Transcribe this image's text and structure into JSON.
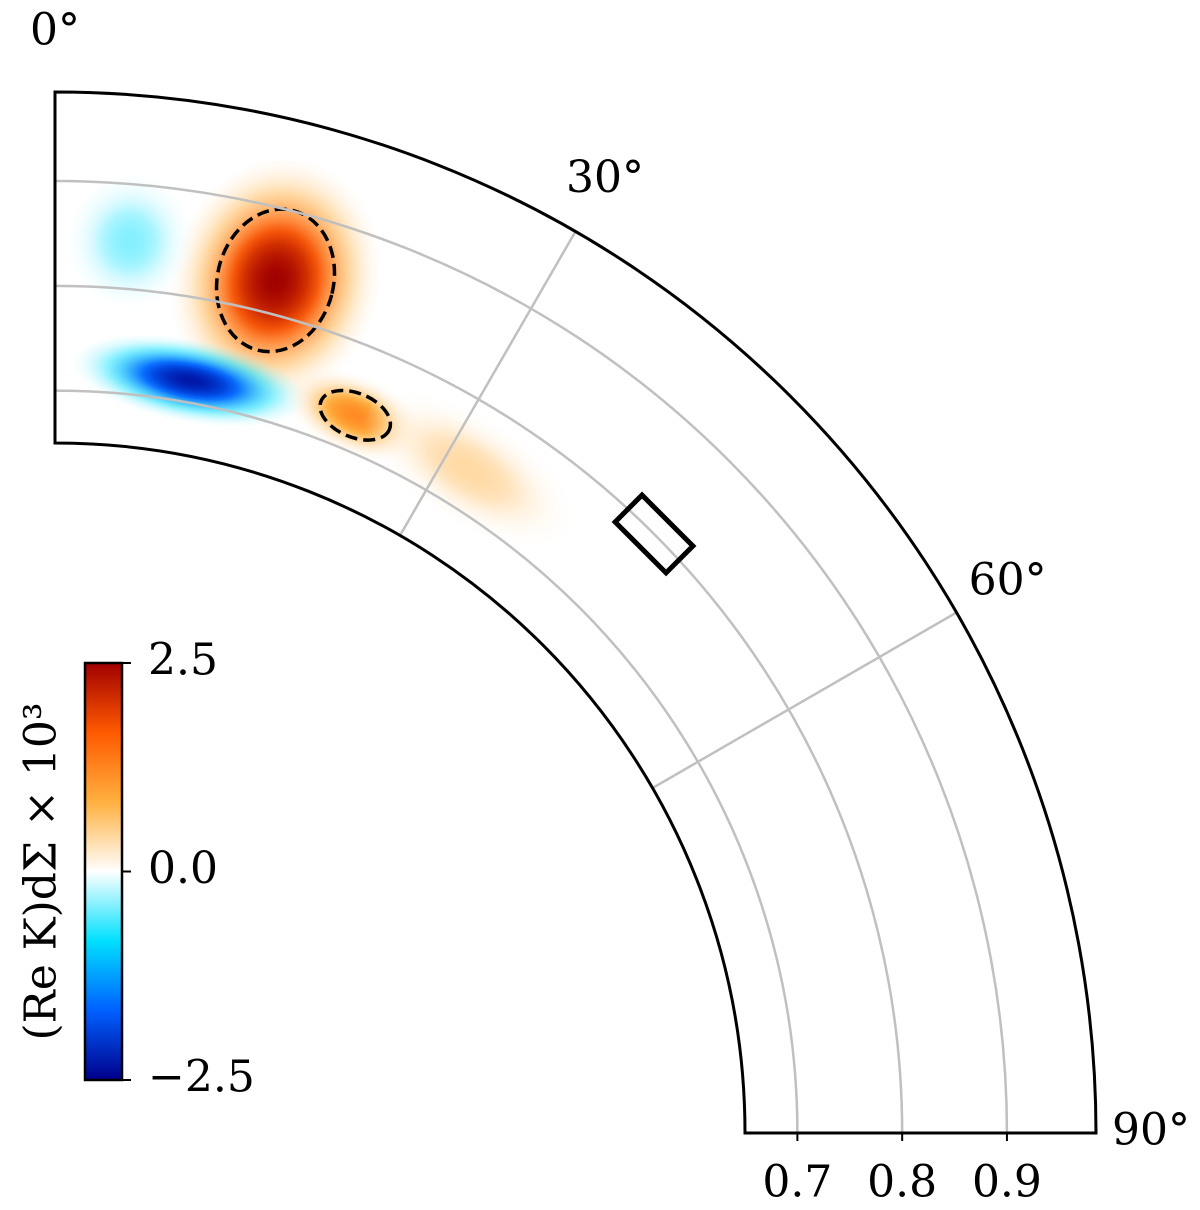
{
  "chart_data": {
    "type": "polar-heatmap",
    "thetalim": [
      0,
      90
    ],
    "thetaticks": [
      {
        "value": 0,
        "label": "0°"
      },
      {
        "value": 30,
        "label": "30°"
      },
      {
        "value": 60,
        "label": "60°"
      },
      {
        "value": 90,
        "label": "90°"
      }
    ],
    "rlim": [
      0.65,
      0.985
    ],
    "rticks": [
      0.7,
      0.8,
      0.9
    ],
    "grid": true,
    "colormap": [
      "#00008b",
      "#0060ff",
      "#00e0ff",
      "#ffffff",
      "#ffb040",
      "#ff5a00",
      "#a00000"
    ],
    "colorbar": {
      "label": "(Re K)dΣ × 10³",
      "lim": [
        -2.5,
        2.5
      ],
      "ticks": [
        2.5,
        {
          "value": 0,
          "label": "0.0"
        },
        {
          "value": -2.5,
          "label": "−2.5"
        }
      ]
    },
    "blobs": [
      {
        "theta": 14.5,
        "r": 0.832,
        "value": 2.5
      },
      {
        "theta": 10.2,
        "r": 0.721,
        "value": -2.3
      },
      {
        "theta": 4.8,
        "r": 0.846,
        "value": -0.4
      },
      {
        "theta": 22.7,
        "r": 0.734,
        "value": 1.2
      },
      {
        "theta": 32,
        "r": 0.738,
        "value": 0.4
      }
    ],
    "marker": {
      "theta": 45,
      "r": 0.8
    }
  }
}
